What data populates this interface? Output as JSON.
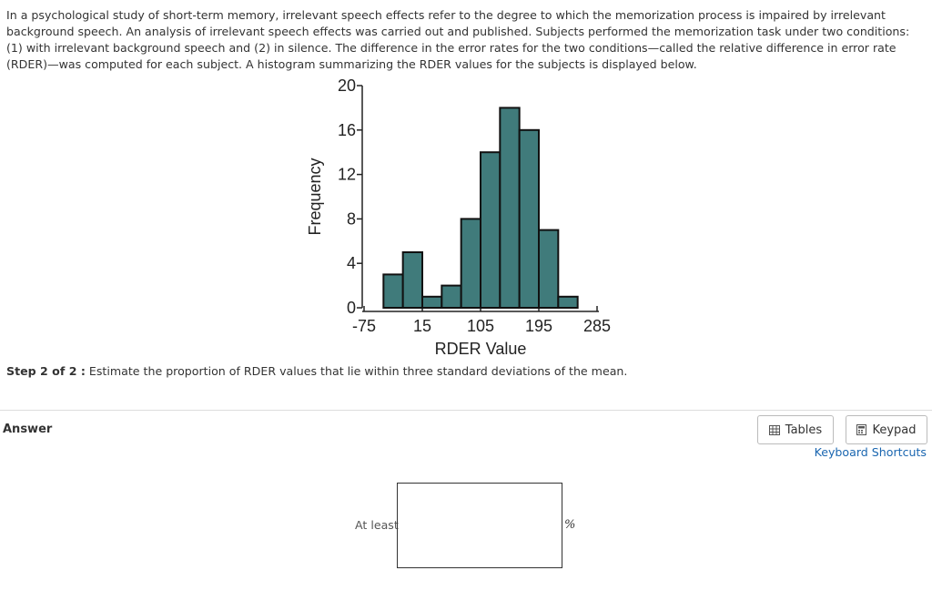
{
  "question": {
    "text": "In a psychological study of short-term memory, irrelevant speech effects refer to the degree to which the memorization process is impaired by irrelevant background speech. An analysis of irrelevant speech effects was carried out and published. Subjects performed the memorization task under two conditions: (1) with irrelevant background speech and (2) in silence. The difference in the error rates for the two conditions—called the relative difference in error rate (RDER)—was computed for each subject. A histogram summarizing the RDER values for the subjects is displayed below.",
    "step_label": "Step 2 of 2 :",
    "step_text": "Estimate the proportion of RDER values that lie within three standard deviations of the mean."
  },
  "chart_data": {
    "type": "histogram",
    "bins": [
      -45,
      -15,
      15,
      45,
      75,
      105,
      135,
      165,
      195,
      225,
      255
    ],
    "values": [
      3,
      5,
      1,
      2,
      8,
      14,
      18,
      16,
      7,
      1
    ],
    "color": "#407b7b",
    "xlabel": "RDER Value",
    "ylabel": "Frequency",
    "xlim": [
      -75,
      285
    ],
    "xticks": [
      -75,
      15,
      105,
      195,
      285
    ],
    "ylim": [
      0,
      20
    ],
    "yticks": [
      0,
      4,
      8,
      12,
      16,
      20
    ]
  },
  "answer": {
    "label": "Answer",
    "prefix": "At least",
    "unit": "%"
  },
  "toolbar": {
    "tables": "Tables",
    "keypad": "Keypad",
    "shortcuts": "Keyboard Shortcuts"
  }
}
